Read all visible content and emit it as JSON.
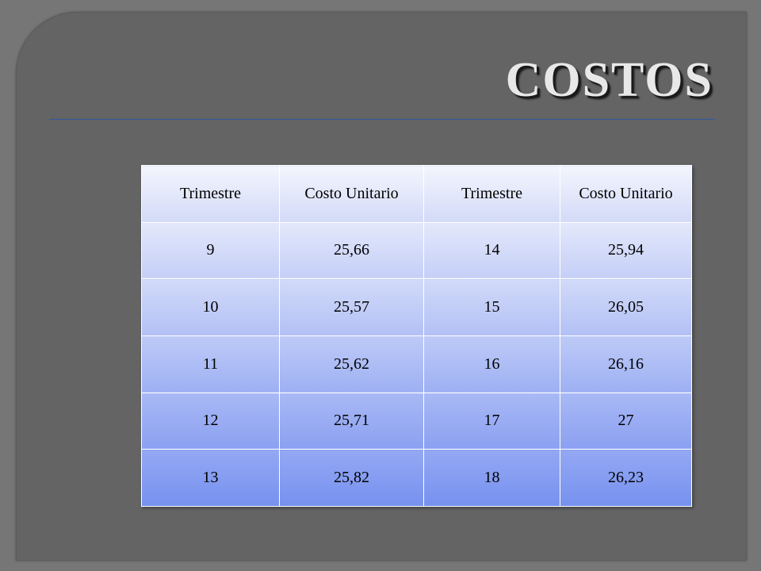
{
  "slide": {
    "title": "COSTOS"
  },
  "table": {
    "headers": [
      "Trimestre",
      "Costo Unitario",
      "Trimestre",
      "Costo Unitario"
    ],
    "rows": [
      [
        "9",
        "25,66",
        "14",
        "25,94"
      ],
      [
        "10",
        "25,57",
        "15",
        "26,05"
      ],
      [
        "11",
        "25,62",
        "16",
        "26,16"
      ],
      [
        "12",
        "25,71",
        "17",
        "27"
      ],
      [
        "13",
        "25,82",
        "18",
        "26,23"
      ]
    ]
  },
  "colors": {
    "background": "#646464",
    "title_text": "#e8e8e8",
    "title_rule": "#2f5aa0",
    "table_top": "#f3f5fd",
    "table_bottom": "#7691ef"
  }
}
